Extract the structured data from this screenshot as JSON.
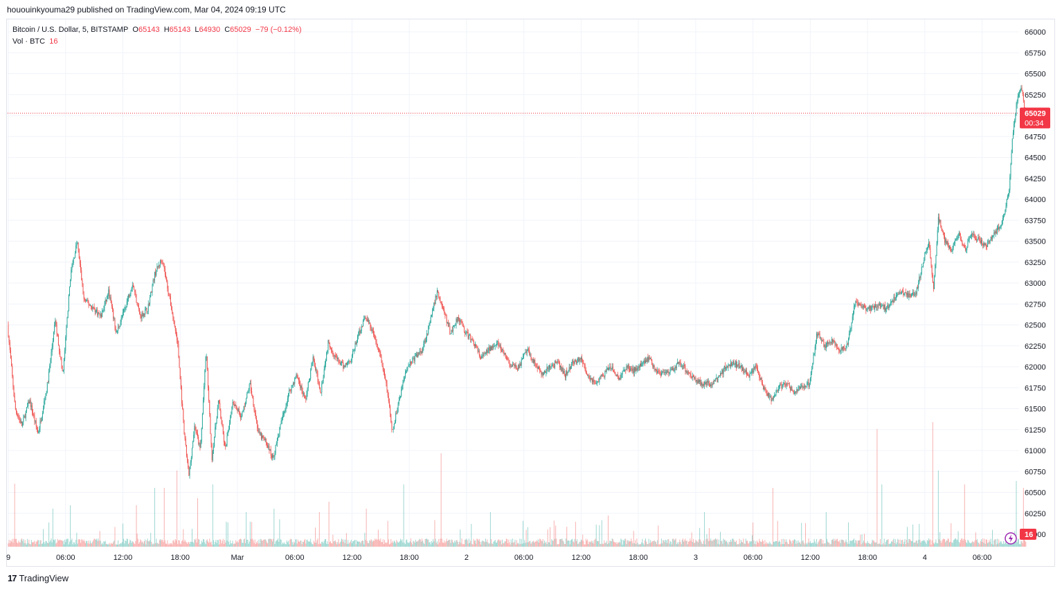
{
  "header": {
    "publisher": "hououinkyouma29",
    "published_text": "published on TradingView.com, Mar 04, 2024 09:19 UTC"
  },
  "legend": {
    "symbol": "Bitcoin / U.S. Dollar, 5, BITSTAMP",
    "o_label": "O",
    "o_value": "65143",
    "h_label": "H",
    "h_value": "65143",
    "l_label": "L",
    "l_value": "64930",
    "c_label": "C",
    "c_value": "65029",
    "change": "−79 (−0.12%)",
    "vol_label": "Vol · BTC",
    "vol_value": "16"
  },
  "price_badge": {
    "price": "65029",
    "countdown": "00:34"
  },
  "volume_badge": {
    "value": "16"
  },
  "footer": {
    "brand": "TradingView"
  },
  "colors": {
    "up": "#26a69a",
    "down": "#ef5350",
    "badge": "#f23645",
    "grid": "#f0f3fa"
  },
  "chart_data": {
    "type": "candlestick",
    "interval_minutes": 5,
    "ylim": [
      60200,
      66100
    ],
    "y_ticks": [
      66000,
      65750,
      65500,
      65250,
      65000,
      64750,
      64500,
      64250,
      64000,
      63750,
      63500,
      63250,
      63000,
      62750,
      62500,
      62250,
      62000,
      61750,
      61500,
      61250,
      61000,
      60750,
      60500,
      60250,
      60000
    ],
    "y_tick_labels": [
      "66000",
      "65750",
      "65500",
      "65250",
      "65000",
      "64750",
      "64500",
      "64250",
      "64000",
      "63750",
      "63500",
      "63250",
      "63000",
      "62750",
      "62500",
      "62250",
      "62000",
      "61750",
      "61500",
      "61250",
      "61000",
      "60750",
      "60500",
      "60250",
      "60000"
    ],
    "x_ticks": [
      "9",
      "06:00",
      "12:00",
      "18:00",
      "Mar",
      "06:00",
      "12:00",
      "18:00",
      "2",
      "06:00",
      "12:00",
      "18:00",
      "3",
      "06:00",
      "12:00",
      "18:00",
      "4",
      "06:00"
    ],
    "x_tick_hours": [
      0,
      6,
      12,
      18,
      24,
      30,
      36,
      42,
      48,
      54,
      60,
      66,
      72,
      78,
      84,
      90,
      96,
      102
    ],
    "last_price": 65029,
    "price_path": [
      [
        0.0,
        62500
      ],
      [
        0.8,
        61500
      ],
      [
        1.5,
        61300
      ],
      [
        2.3,
        61600
      ],
      [
        3.2,
        61200
      ],
      [
        4.2,
        61800
      ],
      [
        5.0,
        62550
      ],
      [
        5.8,
        61900
      ],
      [
        6.6,
        63100
      ],
      [
        7.3,
        63500
      ],
      [
        8.0,
        62800
      ],
      [
        9.0,
        62700
      ],
      [
        9.8,
        62600
      ],
      [
        10.6,
        62900
      ],
      [
        11.4,
        62400
      ],
      [
        12.3,
        62700
      ],
      [
        13.1,
        63000
      ],
      [
        13.9,
        62600
      ],
      [
        14.7,
        62700
      ],
      [
        15.4,
        63100
      ],
      [
        16.2,
        63300
      ],
      [
        17.0,
        62800
      ],
      [
        17.8,
        62300
      ],
      [
        18.5,
        61200
      ],
      [
        19.0,
        60700
      ],
      [
        19.6,
        61300
      ],
      [
        20.2,
        61000
      ],
      [
        20.8,
        62200
      ],
      [
        21.4,
        60900
      ],
      [
        22.1,
        61600
      ],
      [
        22.8,
        61000
      ],
      [
        23.6,
        61600
      ],
      [
        24.5,
        61400
      ],
      [
        25.4,
        61800
      ],
      [
        26.3,
        61200
      ],
      [
        27.1,
        61100
      ],
      [
        27.8,
        60900
      ],
      [
        28.6,
        61300
      ],
      [
        29.5,
        61700
      ],
      [
        30.3,
        61900
      ],
      [
        31.2,
        61600
      ],
      [
        32.0,
        62100
      ],
      [
        32.8,
        61700
      ],
      [
        33.6,
        62300
      ],
      [
        34.4,
        62100
      ],
      [
        35.2,
        62000
      ],
      [
        36.0,
        62100
      ],
      [
        36.8,
        62400
      ],
      [
        37.5,
        62600
      ],
      [
        38.3,
        62400
      ],
      [
        39.1,
        62100
      ],
      [
        39.8,
        61700
      ],
      [
        40.3,
        61200
      ],
      [
        41.0,
        61600
      ],
      [
        41.8,
        62000
      ],
      [
        42.6,
        62100
      ],
      [
        43.4,
        62200
      ],
      [
        44.2,
        62500
      ],
      [
        45.0,
        62900
      ],
      [
        45.6,
        62700
      ],
      [
        46.4,
        62400
      ],
      [
        47.2,
        62600
      ],
      [
        48.0,
        62400
      ],
      [
        48.8,
        62300
      ],
      [
        49.6,
        62100
      ],
      [
        50.4,
        62200
      ],
      [
        51.2,
        62300
      ],
      [
        52.0,
        62150
      ],
      [
        52.8,
        62000
      ],
      [
        53.6,
        62000
      ],
      [
        54.4,
        62200
      ],
      [
        55.2,
        62050
      ],
      [
        56.0,
        61900
      ],
      [
        56.8,
        62000
      ],
      [
        57.6,
        62050
      ],
      [
        58.4,
        61900
      ],
      [
        59.2,
        62050
      ],
      [
        60.0,
        62100
      ],
      [
        60.8,
        61900
      ],
      [
        61.6,
        61800
      ],
      [
        62.4,
        61900
      ],
      [
        63.2,
        62000
      ],
      [
        64.0,
        61850
      ],
      [
        64.8,
        62000
      ],
      [
        65.6,
        61950
      ],
      [
        66.4,
        62050
      ],
      [
        67.2,
        62100
      ],
      [
        68.0,
        61950
      ],
      [
        68.8,
        61900
      ],
      [
        69.6,
        61950
      ],
      [
        70.4,
        62050
      ],
      [
        71.2,
        61950
      ],
      [
        72.0,
        61850
      ],
      [
        72.8,
        61800
      ],
      [
        73.6,
        61800
      ],
      [
        74.4,
        61850
      ],
      [
        75.2,
        62000
      ],
      [
        76.0,
        62050
      ],
      [
        76.8,
        62000
      ],
      [
        77.6,
        61900
      ],
      [
        78.4,
        62000
      ],
      [
        79.2,
        61750
      ],
      [
        80.0,
        61600
      ],
      [
        80.8,
        61750
      ],
      [
        81.6,
        61800
      ],
      [
        82.4,
        61700
      ],
      [
        83.2,
        61750
      ],
      [
        84.0,
        61800
      ],
      [
        84.8,
        62400
      ],
      [
        85.6,
        62250
      ],
      [
        86.4,
        62300
      ],
      [
        87.2,
        62200
      ],
      [
        88.0,
        62250
      ],
      [
        88.8,
        62800
      ],
      [
        89.6,
        62700
      ],
      [
        90.4,
        62700
      ],
      [
        91.2,
        62750
      ],
      [
        92.0,
        62700
      ],
      [
        92.8,
        62800
      ],
      [
        93.6,
        62900
      ],
      [
        94.4,
        62850
      ],
      [
        95.2,
        62900
      ],
      [
        96.0,
        63300
      ],
      [
        96.5,
        63500
      ],
      [
        97.0,
        62900
      ],
      [
        97.5,
        63800
      ],
      [
        98.2,
        63500
      ],
      [
        98.9,
        63400
      ],
      [
        99.6,
        63600
      ],
      [
        100.3,
        63400
      ],
      [
        101.0,
        63600
      ],
      [
        101.8,
        63500
      ],
      [
        102.6,
        63450
      ],
      [
        103.4,
        63600
      ],
      [
        104.1,
        63700
      ],
      [
        104.9,
        64100
      ],
      [
        105.3,
        64800
      ],
      [
        105.8,
        65200
      ],
      [
        106.2,
        65350
      ],
      [
        106.6,
        65029
      ]
    ],
    "volume_spikes": [
      [
        0.7,
        91
      ],
      [
        4.7,
        55
      ],
      [
        6.5,
        60
      ],
      [
        13.4,
        60
      ],
      [
        15.3,
        85
      ],
      [
        16.3,
        85
      ],
      [
        17.7,
        110
      ],
      [
        19.8,
        70
      ],
      [
        21.4,
        90
      ],
      [
        24.9,
        50
      ],
      [
        27.8,
        55
      ],
      [
        32.6,
        50
      ],
      [
        33.6,
        65
      ],
      [
        37.5,
        55
      ],
      [
        41.4,
        90
      ],
      [
        45.3,
        135
      ],
      [
        50.5,
        50
      ],
      [
        62.8,
        45
      ],
      [
        72.9,
        50
      ],
      [
        80.1,
        85
      ],
      [
        85.7,
        50
      ],
      [
        91.0,
        170
      ],
      [
        91.5,
        90
      ],
      [
        96.8,
        180
      ],
      [
        97.4,
        110
      ],
      [
        100.2,
        90
      ],
      [
        105.6,
        95
      ],
      [
        106.3,
        85
      ]
    ]
  }
}
